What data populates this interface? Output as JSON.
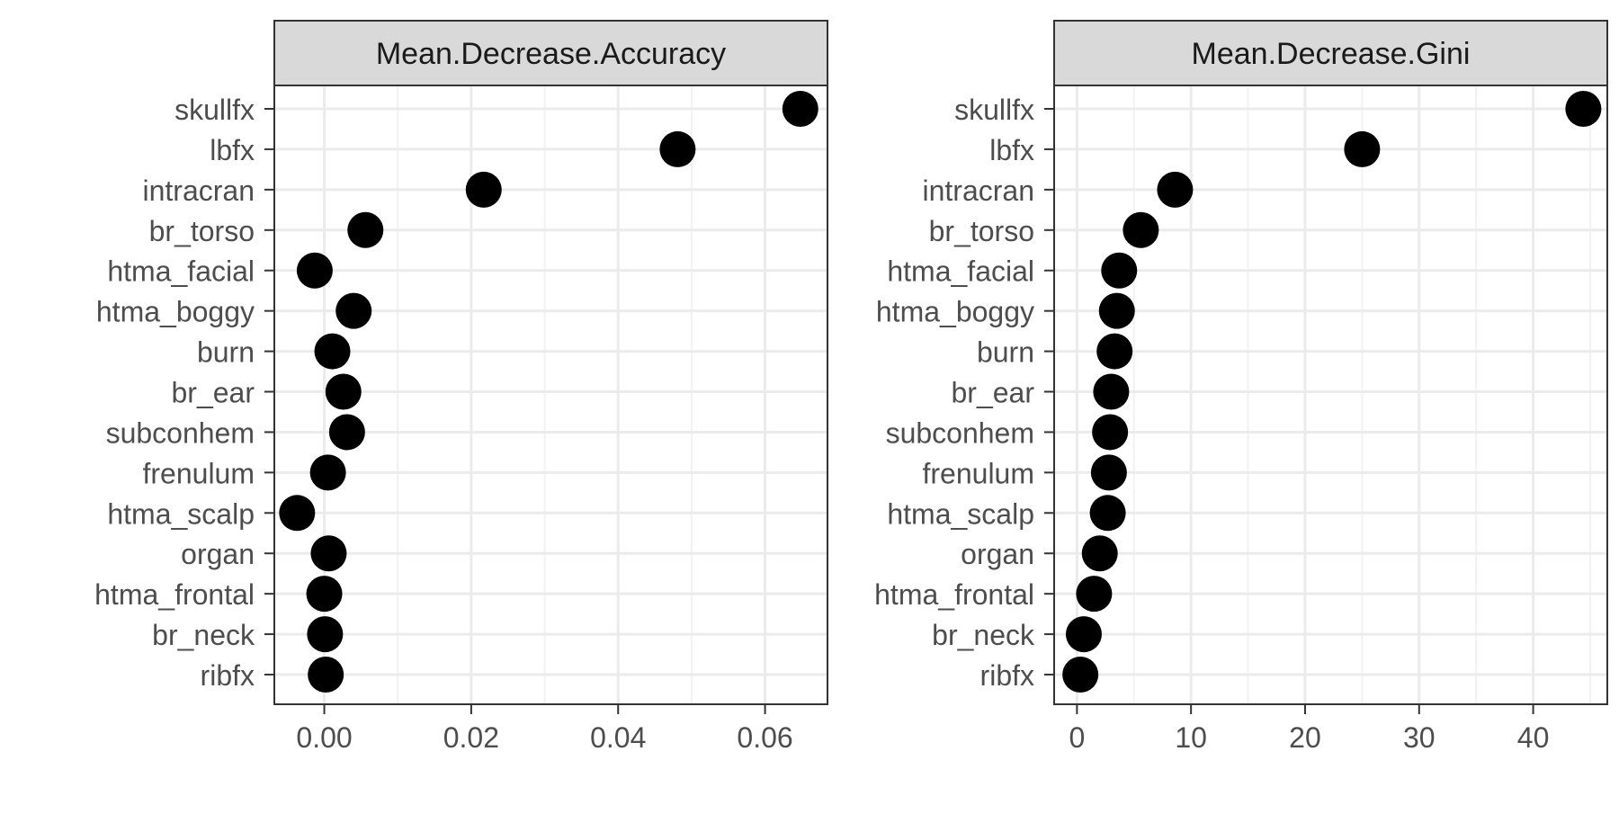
{
  "chart_data": [
    {
      "type": "scatter",
      "title": "Mean.Decrease.Accuracy",
      "xlabel": "",
      "ylabel": "",
      "categories": [
        "skullfx",
        "lbfx",
        "intracran",
        "br_torso",
        "htma_facial",
        "htma_boggy",
        "burn",
        "br_ear",
        "subconhem",
        "frenulum",
        "htma_scalp",
        "organ",
        "htma_frontal",
        "br_neck",
        "ribfx"
      ],
      "values": [
        0.0648,
        0.0481,
        0.0217,
        0.0056,
        -0.0013,
        0.004,
        0.0011,
        0.0026,
        0.0031,
        0.0005,
        -0.0037,
        0.0006,
        0.0,
        0.0001,
        0.0002
      ],
      "xlim": [
        -0.0068,
        0.0685
      ],
      "xticks": [
        0.0,
        0.02,
        0.04,
        0.06
      ],
      "xtick_labels": [
        "0.00",
        "0.02",
        "0.04",
        "0.06"
      ],
      "grid": true
    },
    {
      "type": "scatter",
      "title": "Mean.Decrease.Gini",
      "xlabel": "",
      "ylabel": "",
      "categories": [
        "skullfx",
        "lbfx",
        "intracran",
        "br_torso",
        "htma_facial",
        "htma_boggy",
        "burn",
        "br_ear",
        "subconhem",
        "frenulum",
        "htma_scalp",
        "organ",
        "htma_frontal",
        "br_neck",
        "ribfx"
      ],
      "values": [
        44.4,
        25.0,
        8.6,
        5.6,
        3.7,
        3.5,
        3.3,
        3.0,
        2.9,
        2.8,
        2.7,
        2.0,
        1.5,
        0.6,
        0.3
      ],
      "xlim": [
        -2.0,
        46.5
      ],
      "xticks": [
        0,
        10,
        20,
        30,
        40
      ],
      "xtick_labels": [
        "0",
        "10",
        "20",
        "30",
        "40"
      ],
      "grid": true
    }
  ],
  "colors": {
    "point": "#000000",
    "strip_fill": "#d9d9d9",
    "panel_border": "#333333",
    "grid_major": "#ebebeb",
    "grid_minor": "#f2f2f2",
    "text": "#4d4d4d",
    "strip_text": "#1a1a1a"
  }
}
